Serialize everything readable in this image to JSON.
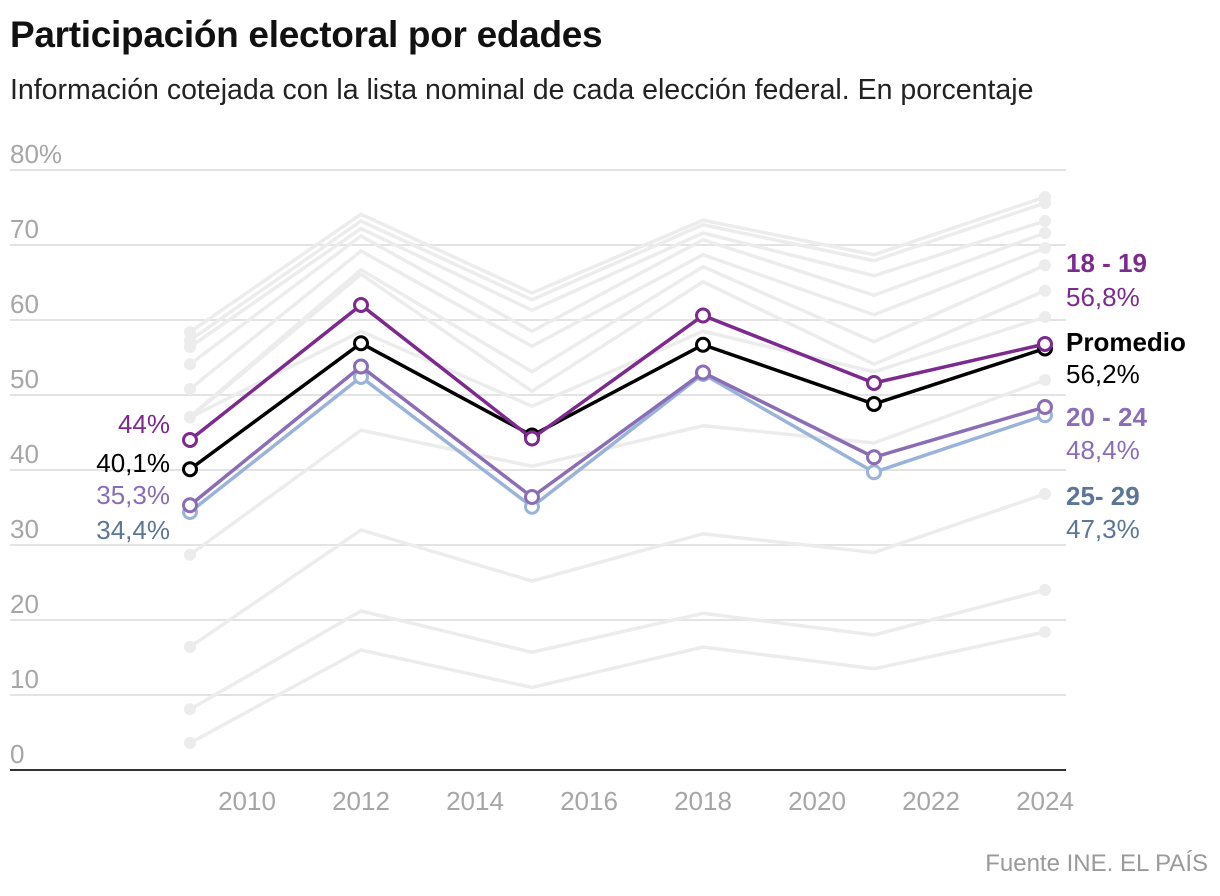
{
  "chart_data": {
    "type": "line",
    "title": "Participación electoral por edades",
    "subtitle": "Información cotejada con la lista nominal de cada elección federal. En porcentaje",
    "source": "Fuente INE. EL PAÍS",
    "x": [
      2009,
      2012,
      2015,
      2018,
      2021,
      2024
    ],
    "xticks": [
      "2010",
      "2012",
      "2014",
      "2016",
      "2018",
      "2020",
      "2022",
      "2024"
    ],
    "yticks": [
      "0",
      "10",
      "20",
      "30",
      "40",
      "50",
      "60",
      "70",
      "80%"
    ],
    "ylim": [
      0,
      80
    ],
    "xlim": [
      2007.9,
      2024.4
    ],
    "grid": true,
    "highlighted_series": [
      {
        "name": "Promedio",
        "values": [
          40.1,
          56.9,
          44.6,
          56.7,
          48.8,
          56.2
        ],
        "color": "#000000",
        "label_color": "#000000",
        "start_label": "40,1%",
        "end_label": "56,2%"
      },
      {
        "name": "25- 29",
        "values": [
          34.4,
          52.4,
          35.1,
          52.8,
          39.7,
          47.3
        ],
        "color": "#9ab3d9",
        "label_color": "#5c7796",
        "start_label": "34,4%",
        "end_label": "47,3%"
      },
      {
        "name": "20 - 24",
        "values": [
          35.3,
          53.8,
          36.4,
          53.0,
          41.7,
          48.4
        ],
        "color": "#8a6db5",
        "label_color": "#8a6db5",
        "start_label": "35,3%",
        "end_label": "48,4%"
      },
      {
        "name": "18 - 19",
        "values": [
          44.0,
          62.0,
          44.2,
          60.6,
          51.6,
          56.8
        ],
        "color": "#7c2a8e",
        "label_color": "#7c2a8e",
        "start_label": "44%",
        "end_label": "56,8%"
      }
    ],
    "background_series": [
      {
        "values": [
          58.4,
          74.1,
          63.6,
          73.3,
          68.7,
          76.4
        ]
      },
      {
        "values": [
          57.3,
          73.2,
          62.7,
          72.7,
          67.9,
          75.6
        ]
      },
      {
        "values": [
          56.4,
          72.2,
          61.3,
          71.6,
          65.9,
          73.2
        ]
      },
      {
        "values": [
          54.1,
          71.2,
          58.5,
          70.7,
          63.3,
          71.6
        ]
      },
      {
        "values": [
          50.8,
          69.2,
          56.5,
          68.7,
          60.7,
          69.6
        ]
      },
      {
        "values": [
          47.1,
          66.7,
          53.1,
          67.1,
          57.1,
          67.3
        ]
      },
      {
        "values": [
          47.0,
          66.1,
          50.5,
          65.1,
          54.1,
          63.9
        ]
      },
      {
        "values": [
          47.0,
          58.5,
          48.5,
          58.5,
          53.1,
          60.4
        ]
      },
      {
        "values": [
          28.7,
          45.3,
          40.5,
          45.9,
          43.6,
          52.0
        ]
      },
      {
        "values": [
          16.4,
          32.0,
          25.2,
          31.5,
          29.0,
          36.8
        ]
      },
      {
        "values": [
          8.1,
          21.2,
          15.7,
          20.9,
          18.0,
          24.0
        ]
      },
      {
        "values": [
          3.6,
          16.0,
          11.0,
          16.4,
          13.5,
          18.4
        ]
      }
    ],
    "colors": {
      "grid": "#e3e3e3",
      "background_line": "#ececec",
      "axis": "#333333",
      "tick_label": "#a6a6a6"
    }
  }
}
